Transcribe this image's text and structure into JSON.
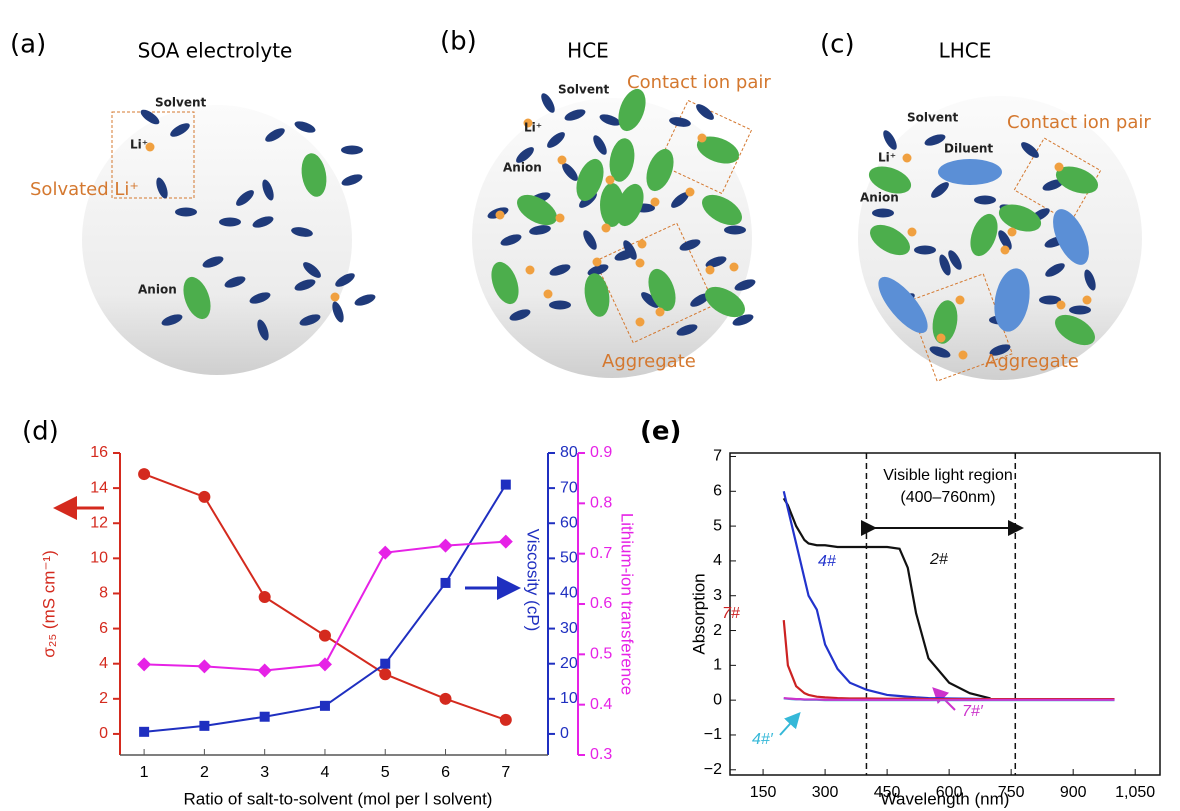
{
  "diagrams": [
    {
      "tag": "(a)",
      "title": "SOA electrolyte",
      "labels": [
        "Solvent",
        "Li⁺",
        "Solvated Li⁺",
        "Anion"
      ]
    },
    {
      "tag": "(b)",
      "title": "HCE",
      "labels": [
        "Solvent",
        "Contact ion pair",
        "Li⁺",
        "Anion",
        "Aggregate"
      ]
    },
    {
      "tag": "(c)",
      "title": "LHCE",
      "labels": [
        "Solvent",
        "Diluent",
        "Contact ion pair",
        "Li⁺",
        "Anion",
        "Aggregate"
      ]
    }
  ],
  "chart_data": [
    {
      "type": "line",
      "tag": "(d)",
      "x_label": "Ratio of salt-to-solvent (mol per l solvent)",
      "y_label": "σ₂₅ (mS cm⁻¹)",
      "y2_label": "Viscosity (cP)",
      "y3_label": "Lithium-ion transference",
      "x": [
        1,
        2,
        3,
        4,
        5,
        6,
        7
      ],
      "xlim": [
        0.6,
        7.7
      ],
      "xticks": [
        1,
        2,
        3,
        4,
        5,
        6,
        7
      ],
      "ylim": [
        -1.2,
        16
      ],
      "yticks": [
        0,
        2,
        4,
        6,
        8,
        10,
        12,
        14,
        16
      ],
      "y2lim": [
        -6,
        80
      ],
      "y2ticks": [
        0,
        10,
        20,
        30,
        40,
        50,
        60,
        70,
        80
      ],
      "y3lim": [
        0.3,
        0.9
      ],
      "y3ticks": [
        0.3,
        0.4,
        0.5,
        0.6,
        0.7,
        0.8,
        0.9
      ],
      "series": [
        {
          "color": "#d42a1e",
          "axis": "y",
          "marker": "circle",
          "values": [
            14.8,
            13.5,
            7.8,
            5.6,
            3.4,
            2.0,
            0.8
          ]
        },
        {
          "color": "#1f2fc0",
          "axis": "y2",
          "marker": "square",
          "values": [
            0.6,
            2.3,
            4.9,
            8,
            20,
            43,
            71
          ]
        },
        {
          "color": "#e622e6",
          "axis": "y3",
          "marker": "diamond",
          "values": [
            0.48,
            0.476,
            0.468,
            0.48,
            0.702,
            0.716,
            0.724
          ]
        }
      ]
    },
    {
      "type": "line",
      "tag": "(e)",
      "x_label": "Wavelength (nm)",
      "y_label": "Absorption",
      "x": [
        200,
        210,
        220,
        230,
        240,
        250,
        260,
        280,
        300,
        330,
        360,
        400,
        450,
        480,
        500,
        520,
        550,
        600,
        650,
        700,
        800,
        900,
        1000
      ],
      "xlim": [
        70,
        1110
      ],
      "xticks": [
        150,
        300,
        450,
        600,
        750,
        900,
        {
          "value": 1050,
          "label": "1,050"
        }
      ],
      "ylim": [
        -2.15,
        7.1
      ],
      "yticks": [
        {
          "value": -2,
          "label": "−2"
        },
        {
          "value": -1,
          "label": "−1"
        },
        0,
        1,
        2,
        3,
        4,
        5,
        6,
        7
      ],
      "visible_region": [
        400,
        760
      ],
      "annotations": [
        "Visible light region",
        "(400–760nm)"
      ],
      "series": [
        {
          "name": "2#",
          "color": "#111111",
          "values": [
            5.8,
            5.6,
            5.3,
            5.0,
            4.8,
            4.6,
            4.5,
            4.45,
            4.45,
            4.4,
            4.4,
            4.4,
            4.4,
            4.35,
            3.8,
            2.5,
            1.2,
            0.5,
            0.2,
            0.05,
            null,
            null,
            null
          ]
        },
        {
          "name": "4#",
          "color": "#2233cc",
          "values": [
            6.0,
            5.5,
            5.0,
            4.5,
            4.0,
            3.5,
            3.0,
            2.6,
            1.6,
            0.9,
            0.5,
            0.3,
            0.15,
            0.12,
            0.1,
            0.08,
            0.06,
            0.05,
            0.04,
            0.03,
            0.02,
            0.02,
            0.02
          ]
        },
        {
          "name": "7#",
          "color": "#cc2222",
          "values": [
            2.3,
            1.0,
            0.7,
            0.4,
            0.3,
            0.2,
            0.15,
            0.1,
            0.08,
            0.06,
            0.05,
            0.05,
            0.04,
            0.04,
            0.04,
            0.04,
            0.03,
            0.03,
            0.03,
            0.03,
            0.03,
            0.03,
            0.03
          ]
        },
        {
          "name": "4#′",
          "color": "#35b8d8",
          "values": [
            0.05,
            0.04,
            0.03,
            0.02,
            0.02,
            0.01,
            0.01,
            0.01,
            0.0,
            0.0,
            0.0,
            0.0,
            0.0,
            0.0,
            0.0,
            0.0,
            0.0,
            0.0,
            0.0,
            0.0,
            0.0,
            0.0,
            0.0
          ]
        },
        {
          "name": "7#′",
          "color": "#cc33cc",
          "values": [
            0.06,
            0.05,
            0.04,
            0.03,
            0.03,
            0.02,
            0.02,
            0.02,
            0.01,
            0.01,
            0.01,
            0.01,
            0.01,
            0.01,
            0.01,
            0.01,
            0.01,
            0.01,
            0.01,
            0.01,
            0.01,
            0.01,
            0.01
          ]
        }
      ]
    }
  ]
}
